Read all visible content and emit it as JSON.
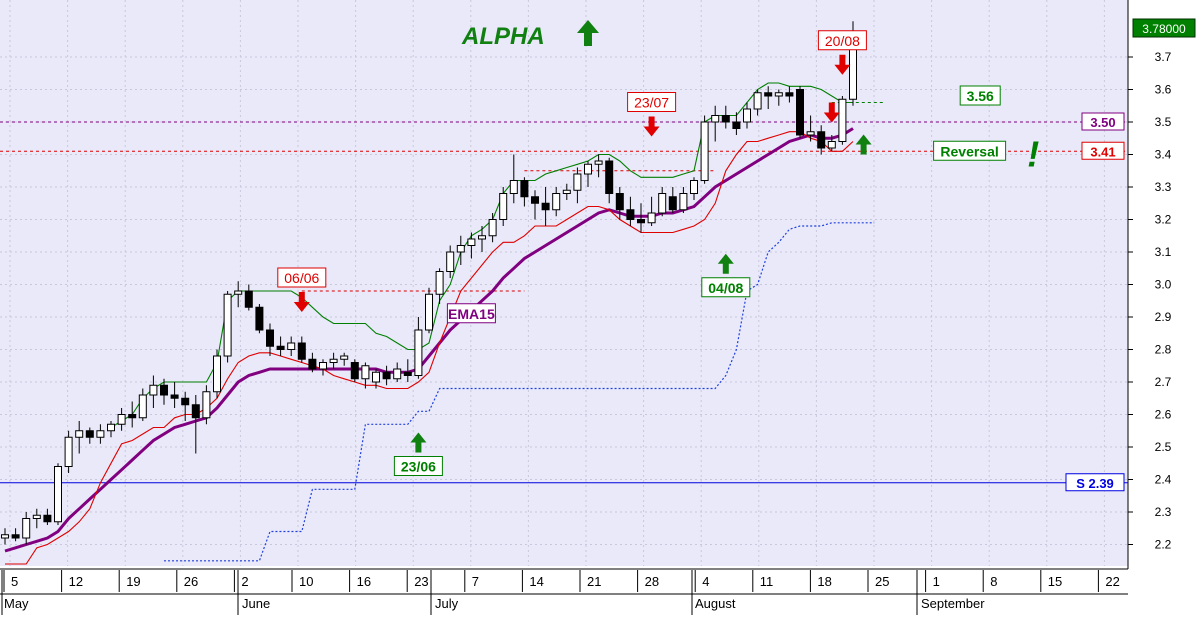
{
  "chart_data": {
    "type": "candlestick",
    "title": "ALPHA",
    "ylim": [
      2.13,
      3.85
    ],
    "y_ticks": [
      "2.2",
      "2.3",
      "2.4",
      "2.5",
      "2.6",
      "2.7",
      "2.8",
      "2.9",
      "3.0",
      "3.1",
      "3.2",
      "3.3",
      "3.4",
      "3.5",
      "3.6",
      "3.7"
    ],
    "x_day_ticks": [
      "5",
      "12",
      "19",
      "26",
      "2",
      "10",
      "16",
      "23",
      "7",
      "14",
      "21",
      "28",
      "4",
      "11",
      "18",
      "25",
      "1",
      "8",
      "15",
      "22"
    ],
    "x_month_labels": [
      "May",
      "June",
      "July",
      "August",
      "September"
    ],
    "grid": true,
    "last_price": "3.78000",
    "candles": [
      {
        "o": 2.22,
        "h": 2.25,
        "l": 2.2,
        "c": 2.23
      },
      {
        "o": 2.23,
        "h": 2.25,
        "l": 2.21,
        "c": 2.22
      },
      {
        "o": 2.22,
        "h": 2.3,
        "l": 2.2,
        "c": 2.28
      },
      {
        "o": 2.28,
        "h": 2.31,
        "l": 2.25,
        "c": 2.29
      },
      {
        "o": 2.29,
        "h": 2.31,
        "l": 2.26,
        "c": 2.27
      },
      {
        "o": 2.27,
        "h": 2.45,
        "l": 2.26,
        "c": 2.44
      },
      {
        "o": 2.44,
        "h": 2.55,
        "l": 2.42,
        "c": 2.53
      },
      {
        "o": 2.53,
        "h": 2.58,
        "l": 2.48,
        "c": 2.55
      },
      {
        "o": 2.55,
        "h": 2.56,
        "l": 2.51,
        "c": 2.53
      },
      {
        "o": 2.53,
        "h": 2.57,
        "l": 2.51,
        "c": 2.55
      },
      {
        "o": 2.55,
        "h": 2.58,
        "l": 2.53,
        "c": 2.57
      },
      {
        "o": 2.57,
        "h": 2.62,
        "l": 2.55,
        "c": 2.6
      },
      {
        "o": 2.6,
        "h": 2.64,
        "l": 2.56,
        "c": 2.59
      },
      {
        "o": 2.59,
        "h": 2.68,
        "l": 2.58,
        "c": 2.66
      },
      {
        "o": 2.66,
        "h": 2.72,
        "l": 2.62,
        "c": 2.69
      },
      {
        "o": 2.69,
        "h": 2.71,
        "l": 2.63,
        "c": 2.66
      },
      {
        "o": 2.66,
        "h": 2.7,
        "l": 2.62,
        "c": 2.65
      },
      {
        "o": 2.65,
        "h": 2.67,
        "l": 2.58,
        "c": 2.63
      },
      {
        "o": 2.63,
        "h": 2.66,
        "l": 2.48,
        "c": 2.59
      },
      {
        "o": 2.59,
        "h": 2.69,
        "l": 2.57,
        "c": 2.67
      },
      {
        "o": 2.67,
        "h": 2.8,
        "l": 2.65,
        "c": 2.78
      },
      {
        "o": 2.78,
        "h": 2.98,
        "l": 2.76,
        "c": 2.97
      },
      {
        "o": 2.97,
        "h": 3.01,
        "l": 2.93,
        "c": 2.98
      },
      {
        "o": 2.98,
        "h": 3.0,
        "l": 2.92,
        "c": 2.93
      },
      {
        "o": 2.93,
        "h": 2.94,
        "l": 2.85,
        "c": 2.86
      },
      {
        "o": 2.86,
        "h": 2.88,
        "l": 2.78,
        "c": 2.81
      },
      {
        "o": 2.81,
        "h": 2.84,
        "l": 2.78,
        "c": 2.8
      },
      {
        "o": 2.8,
        "h": 2.84,
        "l": 2.78,
        "c": 2.82
      },
      {
        "o": 2.82,
        "h": 2.84,
        "l": 2.76,
        "c": 2.77
      },
      {
        "o": 2.77,
        "h": 2.79,
        "l": 2.73,
        "c": 2.74
      },
      {
        "o": 2.74,
        "h": 2.77,
        "l": 2.72,
        "c": 2.76
      },
      {
        "o": 2.76,
        "h": 2.79,
        "l": 2.74,
        "c": 2.77
      },
      {
        "o": 2.77,
        "h": 2.79,
        "l": 2.75,
        "c": 2.78
      },
      {
        "o": 2.76,
        "h": 2.77,
        "l": 2.7,
        "c": 2.71
      },
      {
        "o": 2.71,
        "h": 2.76,
        "l": 2.68,
        "c": 2.75
      },
      {
        "o": 2.7,
        "h": 2.74,
        "l": 2.68,
        "c": 2.73
      },
      {
        "o": 2.73,
        "h": 2.75,
        "l": 2.69,
        "c": 2.71
      },
      {
        "o": 2.71,
        "h": 2.76,
        "l": 2.7,
        "c": 2.74
      },
      {
        "o": 2.73,
        "h": 2.77,
        "l": 2.7,
        "c": 2.72
      },
      {
        "o": 2.72,
        "h": 2.9,
        "l": 2.71,
        "c": 2.86
      },
      {
        "o": 2.86,
        "h": 2.99,
        "l": 2.85,
        "c": 2.97
      },
      {
        "o": 2.97,
        "h": 3.05,
        "l": 2.94,
        "c": 3.04
      },
      {
        "o": 3.04,
        "h": 3.12,
        "l": 3.02,
        "c": 3.1
      },
      {
        "o": 3.1,
        "h": 3.15,
        "l": 3.06,
        "c": 3.12
      },
      {
        "o": 3.12,
        "h": 3.16,
        "l": 3.08,
        "c": 3.14
      },
      {
        "o": 3.14,
        "h": 3.18,
        "l": 3.1,
        "c": 3.15
      },
      {
        "o": 3.15,
        "h": 3.22,
        "l": 3.13,
        "c": 3.2
      },
      {
        "o": 3.2,
        "h": 3.3,
        "l": 3.18,
        "c": 3.28
      },
      {
        "o": 3.28,
        "h": 3.4,
        "l": 3.25,
        "c": 3.32
      },
      {
        "o": 3.32,
        "h": 3.33,
        "l": 3.24,
        "c": 3.27
      },
      {
        "o": 3.27,
        "h": 3.29,
        "l": 3.2,
        "c": 3.25
      },
      {
        "o": 3.25,
        "h": 3.3,
        "l": 3.18,
        "c": 3.23
      },
      {
        "o": 3.23,
        "h": 3.3,
        "l": 3.21,
        "c": 3.28
      },
      {
        "o": 3.28,
        "h": 3.31,
        "l": 3.26,
        "c": 3.29
      },
      {
        "o": 3.29,
        "h": 3.36,
        "l": 3.25,
        "c": 3.34
      },
      {
        "o": 3.34,
        "h": 3.38,
        "l": 3.3,
        "c": 3.37
      },
      {
        "o": 3.37,
        "h": 3.4,
        "l": 3.33,
        "c": 3.38
      },
      {
        "o": 3.38,
        "h": 3.39,
        "l": 3.25,
        "c": 3.28
      },
      {
        "o": 3.28,
        "h": 3.3,
        "l": 3.2,
        "c": 3.23
      },
      {
        "o": 3.23,
        "h": 3.27,
        "l": 3.18,
        "c": 3.2
      },
      {
        "o": 3.2,
        "h": 3.25,
        "l": 3.16,
        "c": 3.19
      },
      {
        "o": 3.19,
        "h": 3.27,
        "l": 3.18,
        "c": 3.22
      },
      {
        "o": 3.22,
        "h": 3.3,
        "l": 3.21,
        "c": 3.28
      },
      {
        "o": 3.27,
        "h": 3.3,
        "l": 3.22,
        "c": 3.23
      },
      {
        "o": 3.23,
        "h": 3.3,
        "l": 3.22,
        "c": 3.28
      },
      {
        "o": 3.28,
        "h": 3.33,
        "l": 3.26,
        "c": 3.32
      },
      {
        "o": 3.32,
        "h": 3.52,
        "l": 3.31,
        "c": 3.5
      },
      {
        "o": 3.5,
        "h": 3.55,
        "l": 3.44,
        "c": 3.52
      },
      {
        "o": 3.52,
        "h": 3.55,
        "l": 3.48,
        "c": 3.5
      },
      {
        "o": 3.5,
        "h": 3.53,
        "l": 3.46,
        "c": 3.48
      },
      {
        "o": 3.5,
        "h": 3.56,
        "l": 3.48,
        "c": 3.54
      },
      {
        "o": 3.54,
        "h": 3.6,
        "l": 3.52,
        "c": 3.59
      },
      {
        "o": 3.59,
        "h": 3.61,
        "l": 3.54,
        "c": 3.58
      },
      {
        "o": 3.58,
        "h": 3.6,
        "l": 3.55,
        "c": 3.59
      },
      {
        "o": 3.59,
        "h": 3.61,
        "l": 3.56,
        "c": 3.58
      },
      {
        "o": 3.6,
        "h": 3.61,
        "l": 3.45,
        "c": 3.46
      },
      {
        "o": 3.46,
        "h": 3.52,
        "l": 3.44,
        "c": 3.47
      },
      {
        "o": 3.47,
        "h": 3.49,
        "l": 3.4,
        "c": 3.42
      },
      {
        "o": 3.42,
        "h": 3.46,
        "l": 3.41,
        "c": 3.44
      },
      {
        "o": 3.44,
        "h": 3.58,
        "l": 3.43,
        "c": 3.57
      },
      {
        "o": 3.57,
        "h": 3.81,
        "l": 3.55,
        "c": 3.78
      }
    ],
    "series": [
      {
        "name": "EMA15",
        "color": "#800080",
        "values": [
          2.18,
          2.19,
          2.2,
          2.21,
          2.22,
          2.24,
          2.28,
          2.31,
          2.34,
          2.37,
          2.4,
          2.43,
          2.46,
          2.49,
          2.52,
          2.54,
          2.56,
          2.57,
          2.58,
          2.59,
          2.62,
          2.66,
          2.7,
          2.72,
          2.73,
          2.74,
          2.74,
          2.74,
          2.74,
          2.74,
          2.74,
          2.74,
          2.74,
          2.74,
          2.74,
          2.74,
          2.73,
          2.73,
          2.73,
          2.74,
          2.78,
          2.82,
          2.86,
          2.89,
          2.92,
          2.95,
          2.98,
          3.02,
          3.05,
          3.08,
          3.1,
          3.12,
          3.14,
          3.16,
          3.18,
          3.2,
          3.22,
          3.23,
          3.22,
          3.21,
          3.21,
          3.21,
          3.22,
          3.22,
          3.23,
          3.24,
          3.27,
          3.3,
          3.32,
          3.34,
          3.36,
          3.38,
          3.4,
          3.42,
          3.44,
          3.45,
          3.46,
          3.45,
          3.45,
          3.46,
          3.48
        ]
      },
      {
        "name": "",
        "color": "#e00000",
        "values": [
          2.14,
          2.14,
          2.14,
          2.19,
          2.2,
          2.22,
          2.24,
          2.27,
          2.31,
          2.39,
          2.45,
          2.51,
          2.52,
          2.54,
          2.56,
          2.56,
          2.59,
          2.6,
          2.6,
          2.62,
          2.65,
          2.71,
          2.76,
          2.78,
          2.79,
          2.79,
          2.78,
          2.77,
          2.76,
          2.75,
          2.74,
          2.72,
          2.71,
          2.7,
          2.69,
          2.69,
          2.68,
          2.68,
          2.68,
          2.7,
          2.73,
          2.82,
          2.9,
          2.98,
          3.02,
          3.06,
          3.1,
          3.13,
          3.13,
          3.15,
          3.18,
          3.18,
          3.18,
          3.2,
          3.22,
          3.24,
          3.24,
          3.23,
          3.2,
          3.18,
          3.16,
          3.16,
          3.16,
          3.16,
          3.17,
          3.18,
          3.2,
          3.25,
          3.35,
          3.4,
          3.44,
          3.44,
          3.45,
          3.46,
          3.47,
          3.47,
          3.45,
          3.44,
          3.41,
          3.41,
          3.44
        ]
      },
      {
        "name": "",
        "color": "#008000",
        "values": [
          null,
          null,
          null,
          null,
          null,
          null,
          null,
          null,
          null,
          null,
          2.56,
          2.58,
          2.6,
          2.65,
          2.68,
          2.7,
          2.7,
          2.7,
          2.7,
          2.7,
          2.76,
          2.95,
          2.98,
          2.98,
          2.98,
          2.98,
          2.98,
          2.98,
          2.96,
          2.93,
          2.9,
          2.88,
          2.88,
          2.88,
          2.88,
          2.85,
          2.84,
          2.82,
          2.8,
          2.8,
          2.82,
          2.95,
          3.0,
          3.1,
          3.15,
          3.17,
          3.2,
          3.28,
          3.32,
          3.32,
          3.32,
          3.34,
          3.35,
          3.36,
          3.37,
          3.38,
          3.4,
          3.4,
          3.38,
          3.35,
          3.33,
          3.33,
          3.33,
          3.33,
          3.34,
          3.35,
          3.5,
          3.52,
          3.52,
          3.52,
          3.56,
          3.6,
          3.62,
          3.62,
          3.61,
          3.61,
          3.61,
          3.6,
          3.58,
          3.56,
          3.56
        ]
      }
    ],
    "stop_line": {
      "start_index": 15,
      "end_index": 82,
      "values": [
        2.15,
        2.15,
        2.15,
        2.15,
        2.15,
        2.15,
        2.15,
        2.15,
        2.15,
        2.15,
        2.24,
        2.24,
        2.24,
        2.24,
        2.37,
        2.37,
        2.37,
        2.37,
        2.37,
        2.57,
        2.57,
        2.57,
        2.57,
        2.57,
        2.61,
        2.61,
        2.68,
        2.68,
        2.68,
        2.68,
        2.68,
        2.68,
        2.68,
        2.68,
        2.68,
        2.68,
        2.68,
        2.68,
        2.68,
        2.68,
        2.68,
        2.68,
        2.68,
        2.68,
        2.68,
        2.68,
        2.68,
        2.68,
        2.68,
        2.68,
        2.68,
        2.68,
        2.68,
        2.72,
        2.8,
        2.98,
        3.0,
        3.1,
        3.13,
        3.17,
        3.18,
        3.18,
        3.18,
        3.19,
        3.19,
        3.19,
        3.19,
        3.19
      ]
    },
    "h_lines": [
      {
        "value": 3.5,
        "color": "#800080",
        "dashed": true,
        "label": "3.50"
      },
      {
        "value": 3.41,
        "color": "#e00000",
        "dashed": true,
        "label": "3.41"
      },
      {
        "value": 2.39,
        "color": "#0000e0",
        "dashed": false,
        "label": "S 2.39"
      }
    ],
    "segments": [
      {
        "from": 28,
        "to": 49,
        "value": 2.98,
        "color": "#e00000"
      },
      {
        "from": 49,
        "to": 67,
        "value": 3.35,
        "color": "#e00000"
      },
      {
        "from": 78,
        "to": 83,
        "value": 3.56,
        "color": "#008000"
      }
    ],
    "annotations": [
      {
        "text": "06/06",
        "color": "#e00000",
        "index": 28,
        "price": 3.02,
        "dir": "down"
      },
      {
        "text": "23/07",
        "color": "#e00000",
        "index": 61,
        "price": 3.56,
        "dir": "down"
      },
      {
        "text": "20/08",
        "color": "#e00000",
        "index": 79,
        "price": 3.75,
        "dir": "down"
      },
      {
        "text": "23/06",
        "color": "#008000",
        "index": 39,
        "price": 2.44,
        "dir": "up"
      },
      {
        "text": "04/08",
        "color": "#008000",
        "index": 68,
        "price": 2.99,
        "dir": "up"
      },
      {
        "text": "EMA15",
        "color": "#800080",
        "index": 44,
        "price": 2.91,
        "dir": "none"
      },
      {
        "text": "3.56",
        "color": "#008000",
        "index": 92,
        "price": 3.58,
        "dir": "none"
      },
      {
        "text": "Reversal",
        "color": "#008000",
        "index": 91,
        "price": 3.41,
        "dir": "none"
      },
      {
        "text": "!",
        "color": "#008000",
        "index": 97,
        "price": 3.4,
        "dir": "none"
      }
    ]
  }
}
